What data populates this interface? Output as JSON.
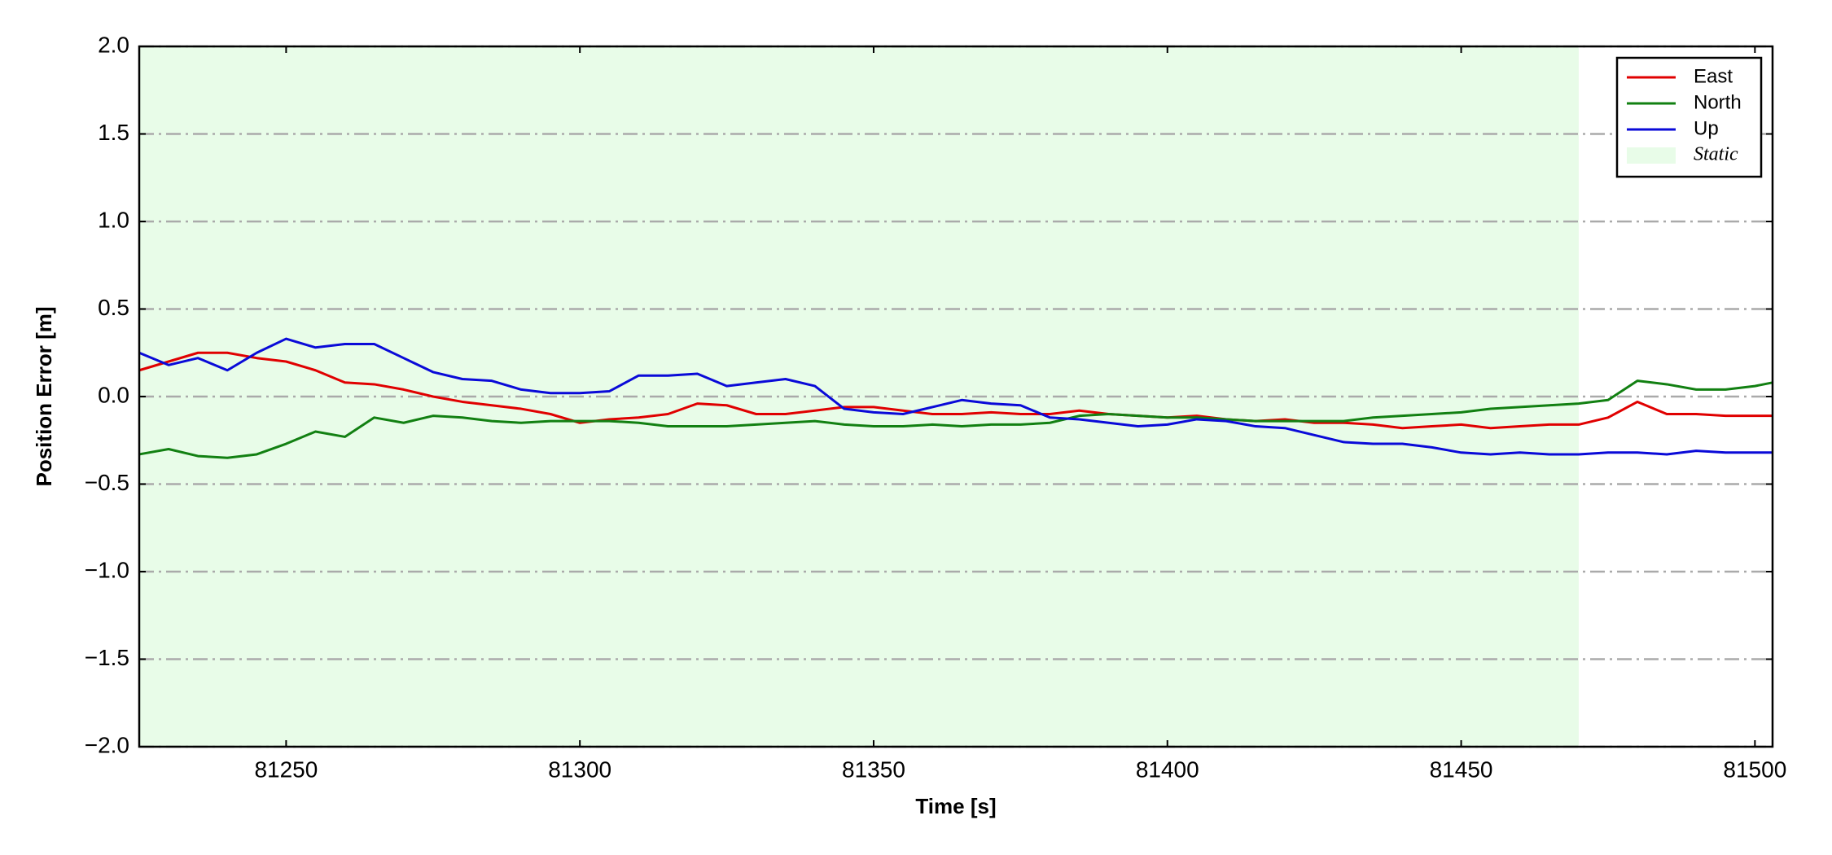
{
  "chart_data": {
    "type": "line",
    "xlabel": "Time [s]",
    "ylabel": "Position Error [m]",
    "x": [
      81225,
      81230,
      81235,
      81240,
      81245,
      81250,
      81255,
      81260,
      81265,
      81270,
      81275,
      81280,
      81285,
      81290,
      81295,
      81300,
      81305,
      81310,
      81315,
      81320,
      81325,
      81330,
      81335,
      81340,
      81345,
      81350,
      81355,
      81360,
      81365,
      81370,
      81375,
      81380,
      81385,
      81390,
      81395,
      81400,
      81405,
      81410,
      81415,
      81420,
      81425,
      81430,
      81435,
      81440,
      81445,
      81450,
      81455,
      81460,
      81465,
      81470,
      81475,
      81480,
      81485,
      81490,
      81495,
      81500,
      81503
    ],
    "series": [
      {
        "name": "East",
        "color": "#e00000",
        "values": [
          0.15,
          0.2,
          0.25,
          0.25,
          0.22,
          0.2,
          0.15,
          0.08,
          0.07,
          0.04,
          0.0,
          -0.03,
          -0.05,
          -0.07,
          -0.1,
          -0.15,
          -0.13,
          -0.12,
          -0.1,
          -0.04,
          -0.05,
          -0.1,
          -0.1,
          -0.08,
          -0.06,
          -0.06,
          -0.08,
          -0.1,
          -0.1,
          -0.09,
          -0.1,
          -0.1,
          -0.08,
          -0.1,
          -0.11,
          -0.12,
          -0.11,
          -0.13,
          -0.14,
          -0.13,
          -0.15,
          -0.15,
          -0.16,
          -0.18,
          -0.17,
          -0.16,
          -0.18,
          -0.17,
          -0.16,
          -0.16,
          -0.12,
          -0.03,
          -0.1,
          -0.1,
          -0.11,
          -0.11,
          -0.11
        ]
      },
      {
        "name": "North",
        "color": "#128012",
        "values": [
          -0.33,
          -0.3,
          -0.34,
          -0.35,
          -0.33,
          -0.27,
          -0.2,
          -0.23,
          -0.12,
          -0.15,
          -0.11,
          -0.12,
          -0.14,
          -0.15,
          -0.14,
          -0.14,
          -0.14,
          -0.15,
          -0.17,
          -0.17,
          -0.17,
          -0.16,
          -0.15,
          -0.14,
          -0.16,
          -0.17,
          -0.17,
          -0.16,
          -0.17,
          -0.16,
          -0.16,
          -0.15,
          -0.11,
          -0.1,
          -0.11,
          -0.12,
          -0.12,
          -0.13,
          -0.14,
          -0.14,
          -0.14,
          -0.14,
          -0.12,
          -0.11,
          -0.1,
          -0.09,
          -0.07,
          -0.06,
          -0.05,
          -0.04,
          -0.02,
          0.09,
          0.07,
          0.04,
          0.04,
          0.06,
          0.08
        ]
      },
      {
        "name": "Up",
        "color": "#0a0ad8",
        "values": [
          0.25,
          0.18,
          0.22,
          0.15,
          0.25,
          0.33,
          0.28,
          0.3,
          0.3,
          0.22,
          0.14,
          0.1,
          0.09,
          0.04,
          0.02,
          0.02,
          0.03,
          0.12,
          0.12,
          0.13,
          0.06,
          0.08,
          0.1,
          0.06,
          -0.07,
          -0.09,
          -0.1,
          -0.06,
          -0.02,
          -0.04,
          -0.05,
          -0.12,
          -0.13,
          -0.15,
          -0.17,
          -0.16,
          -0.13,
          -0.14,
          -0.17,
          -0.18,
          -0.22,
          -0.26,
          -0.27,
          -0.27,
          -0.29,
          -0.32,
          -0.33,
          -0.32,
          -0.33,
          -0.33,
          -0.32,
          -0.32,
          -0.33,
          -0.31,
          -0.32,
          -0.32,
          -0.32
        ]
      }
    ],
    "shaded_region": {
      "label": "Static",
      "x": [
        81225,
        81470
      ],
      "color": "#e8fce8"
    },
    "xlim": [
      81225,
      81503
    ],
    "xticks": [
      81250,
      81300,
      81350,
      81400,
      81450,
      81500
    ],
    "ylim": [
      -2,
      2
    ],
    "yticks": [
      {
        "value": -2,
        "label": "−2.0"
      },
      {
        "value": -1.5,
        "label": "−1.5"
      },
      {
        "value": -1,
        "label": "−1.0"
      },
      {
        "value": -0.5,
        "label": "−0.5"
      },
      {
        "value": 0,
        "label": "0.0"
      },
      {
        "value": 0.5,
        "label": "0.5"
      },
      {
        "value": 1,
        "label": "1.0"
      },
      {
        "value": 1.5,
        "label": "1.5"
      },
      {
        "value": 2,
        "label": "2.0"
      }
    ],
    "grid": true,
    "legend": "upper right"
  }
}
